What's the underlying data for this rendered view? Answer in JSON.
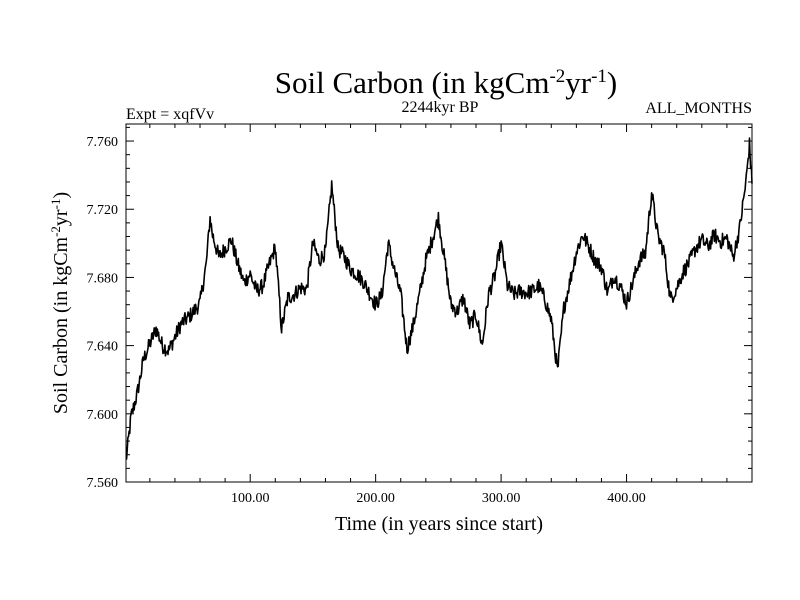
{
  "chart_data": {
    "type": "line",
    "title": {
      "text": "Soil Carbon (in kgCm",
      "sup1": "-2",
      "mid": "yr",
      "sup2": "-1",
      "close": ")"
    },
    "subtitle_left": "Expt = xqfVv",
    "subtitle_center": "2244kyr BP",
    "subtitle_right": "ALL_MONTHS",
    "xlabel": "Time (in years since start)",
    "ylabel": {
      "text": "Soil Carbon (in kgCm",
      "sup1": "-2",
      "mid": "yr",
      "sup2": "-1",
      "close": ")"
    },
    "xlim": [
      1,
      500
    ],
    "ylim": [
      7.56,
      7.77
    ],
    "xticks": [
      100,
      200,
      300,
      400
    ],
    "xtick_labels": [
      "100.00",
      "200.00",
      "300.00",
      "400.00"
    ],
    "yticks": [
      7.56,
      7.6,
      7.64,
      7.68,
      7.72,
      7.76
    ],
    "ytick_labels": [
      "7.560",
      "7.600",
      "7.640",
      "7.680",
      "7.720",
      "7.760"
    ],
    "series": [
      {
        "name": "Soil Carbon",
        "color": "#000000",
        "x": [
          1,
          5,
          10,
          15,
          20,
          25,
          30,
          35,
          40,
          45,
          50,
          55,
          60,
          65,
          68,
          70,
          75,
          80,
          85,
          90,
          95,
          100,
          105,
          110,
          115,
          120,
          125,
          130,
          135,
          140,
          145,
          150,
          155,
          160,
          165,
          170,
          175,
          180,
          185,
          190,
          195,
          200,
          205,
          210,
          215,
          220,
          225,
          230,
          235,
          240,
          245,
          250,
          255,
          260,
          265,
          270,
          275,
          280,
          285,
          290,
          295,
          300,
          305,
          310,
          315,
          320,
          325,
          330,
          335,
          340,
          345,
          350,
          355,
          360,
          365,
          370,
          375,
          380,
          385,
          390,
          395,
          400,
          405,
          410,
          415,
          420,
          425,
          430,
          435,
          440,
          445,
          450,
          455,
          460,
          465,
          470,
          475,
          480,
          485,
          490,
          495,
          498,
          500
        ],
        "values": [
          7.572,
          7.598,
          7.612,
          7.632,
          7.641,
          7.65,
          7.64,
          7.637,
          7.645,
          7.653,
          7.656,
          7.66,
          7.665,
          7.688,
          7.715,
          7.705,
          7.692,
          7.697,
          7.702,
          7.688,
          7.677,
          7.682,
          7.672,
          7.675,
          7.687,
          7.698,
          7.65,
          7.668,
          7.67,
          7.674,
          7.673,
          7.7,
          7.69,
          7.695,
          7.734,
          7.697,
          7.692,
          7.685,
          7.682,
          7.678,
          7.671,
          7.664,
          7.67,
          7.7,
          7.684,
          7.67,
          7.638,
          7.652,
          7.67,
          7.69,
          7.702,
          7.715,
          7.69,
          7.664,
          7.66,
          7.668,
          7.652,
          7.658,
          7.64,
          7.67,
          7.681,
          7.7,
          7.675,
          7.67,
          7.672,
          7.671,
          7.672,
          7.675,
          7.667,
          7.655,
          7.625,
          7.662,
          7.678,
          7.695,
          7.705,
          7.698,
          7.69,
          7.686,
          7.671,
          7.681,
          7.675,
          7.665,
          7.677,
          7.69,
          7.694,
          7.73,
          7.704,
          7.695,
          7.667,
          7.674,
          7.683,
          7.689,
          7.697,
          7.702,
          7.698,
          7.705,
          7.701,
          7.703,
          7.692,
          7.708,
          7.735,
          7.758,
          7.735
        ]
      }
    ]
  }
}
